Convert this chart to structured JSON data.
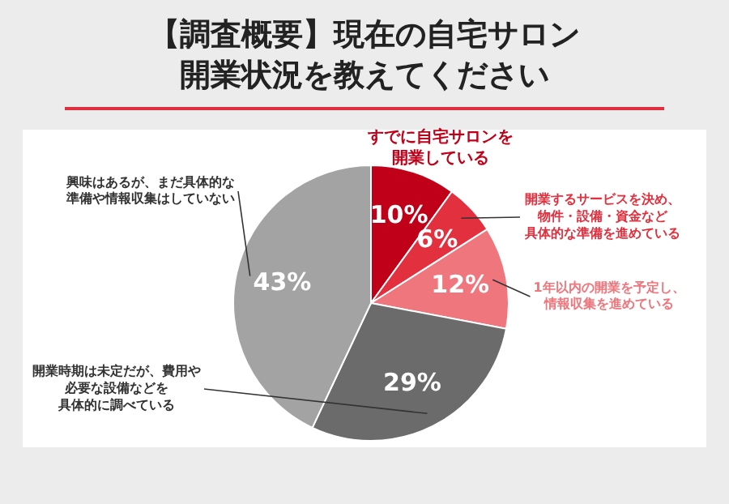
{
  "chart_data": {
    "type": "pie",
    "title": "【調査概要】現在の自宅サロン開業状況を教えてください",
    "categories": [
      "すでに自宅サロンを開業している",
      "開業するサービスを決め、物件・設備・資金など具体的な準備を進めている",
      "1年以内の開業を予定し、情報収集を進めている",
      "開業時期は未定だが、費用や必要な設備などを具体的に調べている",
      "興味はあるが、まだ具体的な準備や情報収集はしていない"
    ],
    "values": [
      10,
      6,
      12,
      29,
      43
    ],
    "value_labels": [
      "10%",
      "6%",
      "12%",
      "29%",
      "43%"
    ],
    "colors": [
      "#c00018",
      "#e2303e",
      "#ee767c",
      "#6b6b6b",
      "#a3a3a3"
    ]
  }
}
